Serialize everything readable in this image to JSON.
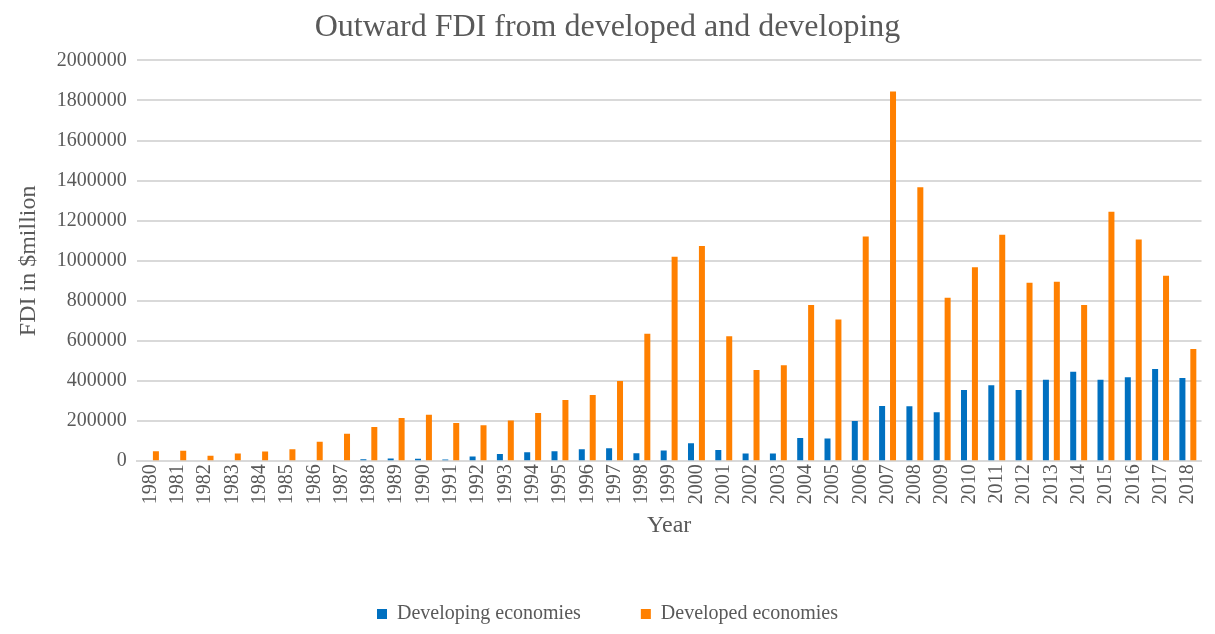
{
  "chart_data": {
    "type": "bar",
    "title": "Outward FDI from developed and developing",
    "xlabel": "Year",
    "ylabel": "FDI in $million",
    "categories": [
      "1980",
      "1981",
      "1982",
      "1983",
      "1984",
      "1985",
      "1986",
      "1987",
      "1988",
      "1989",
      "1990",
      "1991",
      "1992",
      "1993",
      "1994",
      "1995",
      "1996",
      "1997",
      "1998",
      "1999",
      "2000",
      "2001",
      "2002",
      "2003",
      "2004",
      "2005",
      "2006",
      "2007",
      "2008",
      "2009",
      "2010",
      "2011",
      "2012",
      "2013",
      "2014",
      "2015",
      "2016",
      "2017",
      "2018"
    ],
    "series": [
      {
        "name": "Developing economies",
        "color": "#0070c0",
        "values": [
          null,
          null,
          null,
          null,
          null,
          null,
          null,
          null,
          10000,
          14000,
          12000,
          9000,
          23000,
          36000,
          45000,
          50000,
          60000,
          65000,
          40000,
          53000,
          89000,
          56000,
          38000,
          38000,
          116000,
          113000,
          200000,
          275000,
          274000,
          244000,
          355000,
          379000,
          355000,
          407000,
          446000,
          406000,
          419000,
          460000,
          415000
        ]
      },
      {
        "name": "Developed economies",
        "color": "#ff8000",
        "values": [
          50000,
          52000,
          27000,
          38000,
          49000,
          60000,
          97000,
          137000,
          171000,
          216000,
          232000,
          190000,
          180000,
          203000,
          240000,
          305000,
          330000,
          400000,
          636000,
          1020000,
          1074000,
          624000,
          455000,
          479000,
          779000,
          707000,
          1121000,
          1845000,
          1367000,
          815000,
          968000,
          1130000,
          890000,
          895000,
          780000,
          1245000,
          1106000,
          926000,
          560000
        ]
      }
    ],
    "ylim": [
      0,
      2000000
    ],
    "yticks": [
      0,
      200000,
      400000,
      600000,
      800000,
      1000000,
      1200000,
      1400000,
      1600000,
      1800000,
      2000000
    ],
    "grid": "y",
    "legend": "bottom"
  }
}
